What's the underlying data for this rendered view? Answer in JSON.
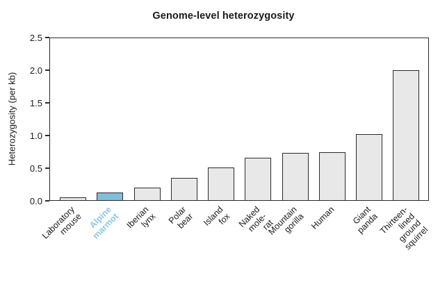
{
  "chart_data": {
    "type": "bar",
    "title": "Genome-level heterozygosity",
    "xlabel": "",
    "ylabel": "Heterozygosity (per kb)",
    "ylim": [
      0,
      2.5
    ],
    "yticks": [
      0.0,
      0.5,
      1.0,
      1.5,
      2.0,
      2.5
    ],
    "grid": false,
    "legend": "none",
    "categories": [
      "Laboratory mouse",
      "Alpine marmot",
      "Iberian lynx",
      "Polar bear",
      "Island fox",
      "Naked mole-rat",
      "Mountain gorilla",
      "Human",
      "Giant panda",
      "Thirteen-lined\nground squirrel"
    ],
    "values": [
      0.05,
      0.13,
      0.2,
      0.35,
      0.51,
      0.66,
      0.73,
      0.74,
      1.02,
      2.0
    ],
    "highlighted_category": "Alpine marmot",
    "bar_color": "#e8e8e8",
    "bar_border_color": "#2b2b2b",
    "highlight_color": "#82bdd9",
    "highlight_label_color": "#8dc6e4",
    "axis_color": "#2b2b2b",
    "text_color": "#1a1a1a"
  }
}
